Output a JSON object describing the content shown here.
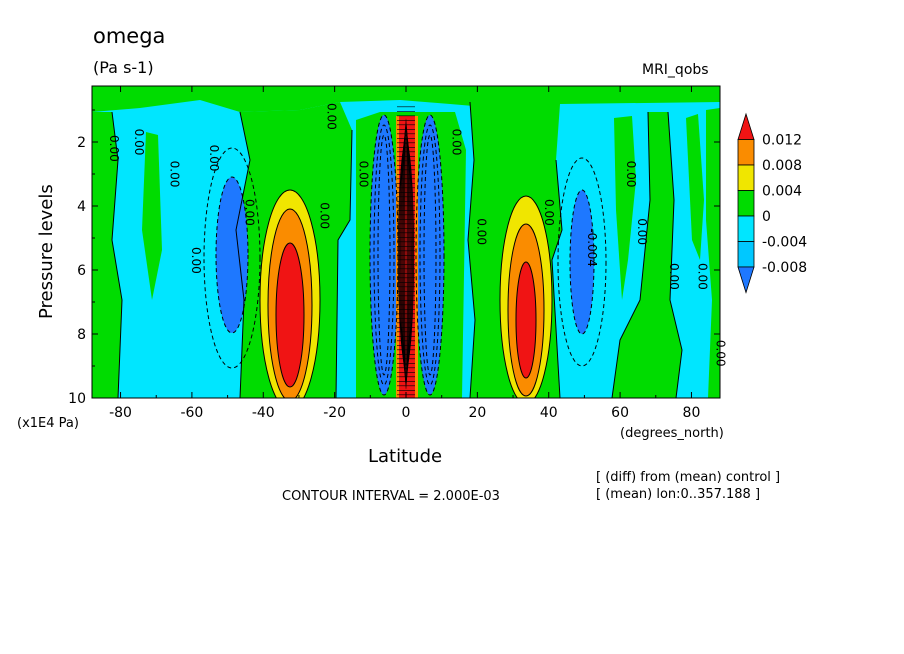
{
  "title": "omega",
  "units": "(Pa s-1)",
  "model": "MRI_qobs",
  "contour_interval": "CONTOUR INTERVAL = 2.000E-03",
  "notes": [
    "[ (diff) from (mean) control ]",
    "[ (mean) lon:0..357.188 ]"
  ],
  "chart_data": {
    "type": "heatmap",
    "title": "omega",
    "units": "(Pa s-1)",
    "xlabel": "Latitude",
    "xunit": "(degrees_north)",
    "ylabel": "Pressure levels",
    "yunit": "(x1E4 Pa)",
    "xlim": [
      -88,
      88
    ],
    "ylim": [
      10,
      0.25
    ],
    "x_ticks": [
      -80,
      -60,
      -40,
      -20,
      0,
      20,
      40,
      60,
      80
    ],
    "x_tick_labels": [
      "-80",
      "-60",
      "-40",
      "-20",
      "0",
      "20",
      "40",
      "60",
      "80"
    ],
    "y_ticks": [
      2,
      4,
      6,
      8,
      10
    ],
    "y_tick_labels": [
      "2",
      "4",
      "6",
      "8",
      "10"
    ],
    "colorbar": {
      "levels": [
        -0.008,
        -0.004,
        0,
        0.004,
        0.008,
        0.012
      ],
      "labels": [
        "-0.008",
        "-0.004",
        "0",
        "0.004",
        "0.008",
        "0.012"
      ],
      "colors": [
        "#1e78ff",
        "#00c8ff",
        "#00e6ff",
        "#00dc00",
        "#f0e600",
        "#fa8c00",
        "#f01414"
      ]
    },
    "features": [
      {
        "lat": 0,
        "p": 5.6,
        "value": 0.014,
        "sign": "positive",
        "shape": "narrow column"
      },
      {
        "lat": -6,
        "p": 5.2,
        "value": -0.012,
        "sign": "negative",
        "shape": "narrow column"
      },
      {
        "lat": 6,
        "p": 5.2,
        "value": -0.012,
        "sign": "negative",
        "shape": "narrow column"
      },
      {
        "lat": -35,
        "p": 6.5,
        "value": 0.013,
        "sign": "positive"
      },
      {
        "lat": 35,
        "p": 6.5,
        "value": 0.012,
        "sign": "positive"
      },
      {
        "lat": -49,
        "p": 5.5,
        "value": -0.008,
        "sign": "negative"
      },
      {
        "lat": 48,
        "p": 5.5,
        "value": -0.006,
        "sign": "negative"
      }
    ],
    "contour_labels": [
      {
        "text": "0.00",
        "lat": -83,
        "p": 2.2
      },
      {
        "text": "0.00",
        "lat": -76,
        "p": 2.0
      },
      {
        "text": "0.00",
        "lat": -66,
        "p": 3.0
      },
      {
        "text": "0.00",
        "lat": -60,
        "p": 5.7
      },
      {
        "text": "0.00",
        "lat": -55,
        "p": 2.5
      },
      {
        "text": "0.00",
        "lat": -45,
        "p": 4.2
      },
      {
        "text": "0.00",
        "lat": -24,
        "p": 4.3
      },
      {
        "text": "0.00",
        "lat": -22,
        "p": 1.2
      },
      {
        "text": "0.00",
        "lat": -13,
        "p": 3.0
      },
      {
        "text": "0.00",
        "lat": 13,
        "p": 2.0
      },
      {
        "text": "0.00",
        "lat": 20,
        "p": 4.8
      },
      {
        "text": "0.00",
        "lat": 39,
        "p": 4.2
      },
      {
        "text": "0.00",
        "lat": 62,
        "p": 3.0
      },
      {
        "text": "0.00",
        "lat": 65,
        "p": 4.8
      },
      {
        "text": "0.00",
        "lat": 74,
        "p": 6.2
      },
      {
        "text": "0.00",
        "lat": 82,
        "p": 6.2
      },
      {
        "text": "0.00",
        "lat": 87,
        "p": 8.6
      },
      {
        "text": "-0.004",
        "lat": 51,
        "p": 5.3
      }
    ]
  }
}
